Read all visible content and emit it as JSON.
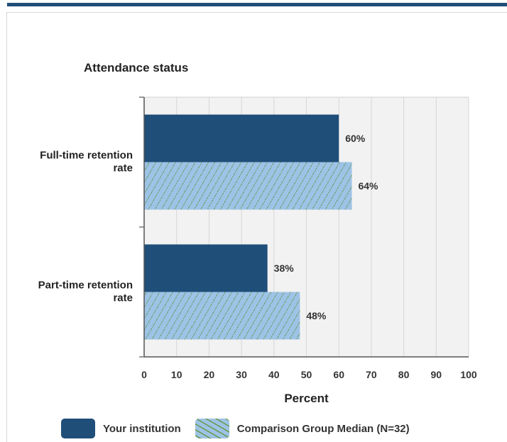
{
  "chart_data": {
    "type": "bar",
    "orientation": "horizontal",
    "title": "Attendance status",
    "xlabel": "Percent",
    "xlim": [
      0,
      100
    ],
    "xticks": [
      0,
      10,
      20,
      30,
      40,
      50,
      60,
      70,
      80,
      90,
      100
    ],
    "categories": [
      [
        "Full-time retention",
        "rate"
      ],
      [
        "Part-time retention",
        "rate"
      ]
    ],
    "series": [
      {
        "name": "Your institution",
        "values": [
          60,
          38
        ],
        "value_labels": [
          "60%",
          "38%"
        ],
        "color": "#1f4e79"
      },
      {
        "name": "Comparison Group Median (N=32)",
        "values": [
          64,
          48
        ],
        "value_labels": [
          "64%",
          "48%"
        ],
        "color": "#9dc3e6",
        "pattern": "diagonal-dots"
      }
    ],
    "grid": true,
    "legend_position": "bottom"
  }
}
